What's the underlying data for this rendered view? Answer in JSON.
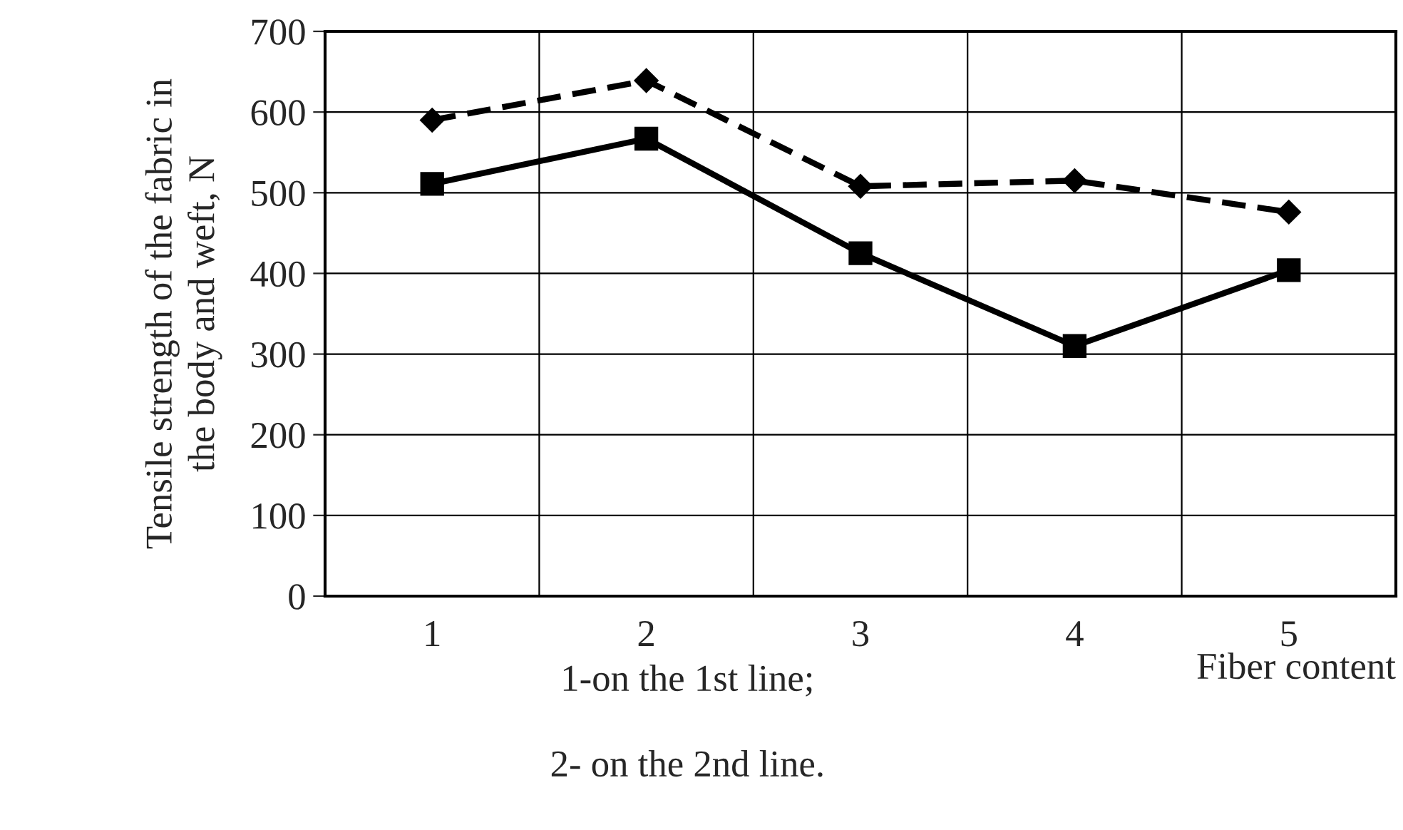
{
  "chart_data": {
    "type": "line",
    "categories": [
      "1",
      "2",
      "3",
      "4",
      "5"
    ],
    "series": [
      {
        "color": "#000000",
        "marker": "diamond",
        "line_style": "dashed",
        "values": [
          590,
          639,
          508,
          515,
          476
        ]
      },
      {
        "color": "#000000",
        "marker": "square",
        "line_style": "solid",
        "values": [
          511,
          567,
          425,
          310,
          404
        ]
      }
    ],
    "ylabel": "Tensile strength of the fabric in\nthe body and weft, N",
    "xlabel": "Fiber content",
    "ylim": [
      0,
      700
    ],
    "yticks": [
      0,
      100,
      200,
      300,
      400,
      500,
      600,
      700
    ],
    "grid": true,
    "legend": false,
    "annotations": [
      "1-on the 1st line;",
      "2- on the 2nd line."
    ]
  }
}
